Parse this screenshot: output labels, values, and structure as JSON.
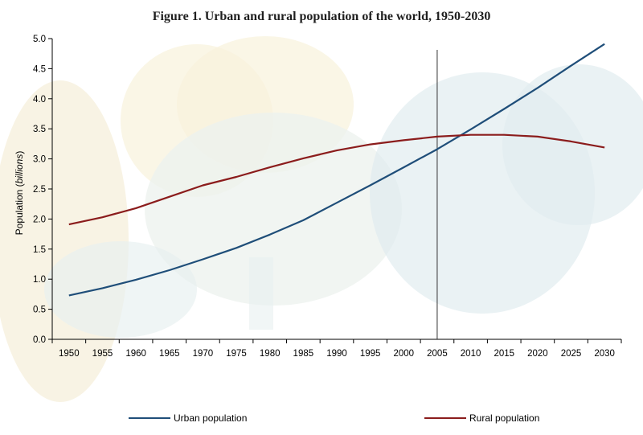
{
  "chart_data": {
    "type": "line",
    "title": "Figure 1. Urban and rural population of the world, 1950-2030",
    "ylabel_main": "Population (",
    "ylabel_italic": "billions",
    "ylabel_end": ")",
    "xlabel": "",
    "x": [
      "1950",
      "1955",
      "1960",
      "1965",
      "1970",
      "1975",
      "1980",
      "1985",
      "1990",
      "1995",
      "2000",
      "2005",
      "2010",
      "2015",
      "2020",
      "2025",
      "2030"
    ],
    "yticks": [
      "0.0",
      "0.5",
      "1.0",
      "1.5",
      "2.0",
      "2.5",
      "3.0",
      "3.5",
      "4.0",
      "4.5",
      "5.0"
    ],
    "ylim": [
      0,
      5.0
    ],
    "reference_line_x": "2005",
    "grid": false,
    "legend_position": "bottom",
    "series": [
      {
        "name": "Urban population",
        "color": "#1f4e79",
        "values": [
          0.73,
          0.85,
          0.99,
          1.15,
          1.33,
          1.52,
          1.74,
          1.98,
          2.27,
          2.56,
          2.86,
          3.16,
          3.49,
          3.83,
          4.18,
          4.55,
          4.91
        ]
      },
      {
        "name": "Rural population",
        "color": "#8b1c1c",
        "values": [
          1.91,
          2.03,
          2.18,
          2.37,
          2.56,
          2.7,
          2.86,
          3.01,
          3.14,
          3.24,
          3.31,
          3.37,
          3.4,
          3.4,
          3.37,
          3.29,
          3.19
        ]
      }
    ]
  }
}
